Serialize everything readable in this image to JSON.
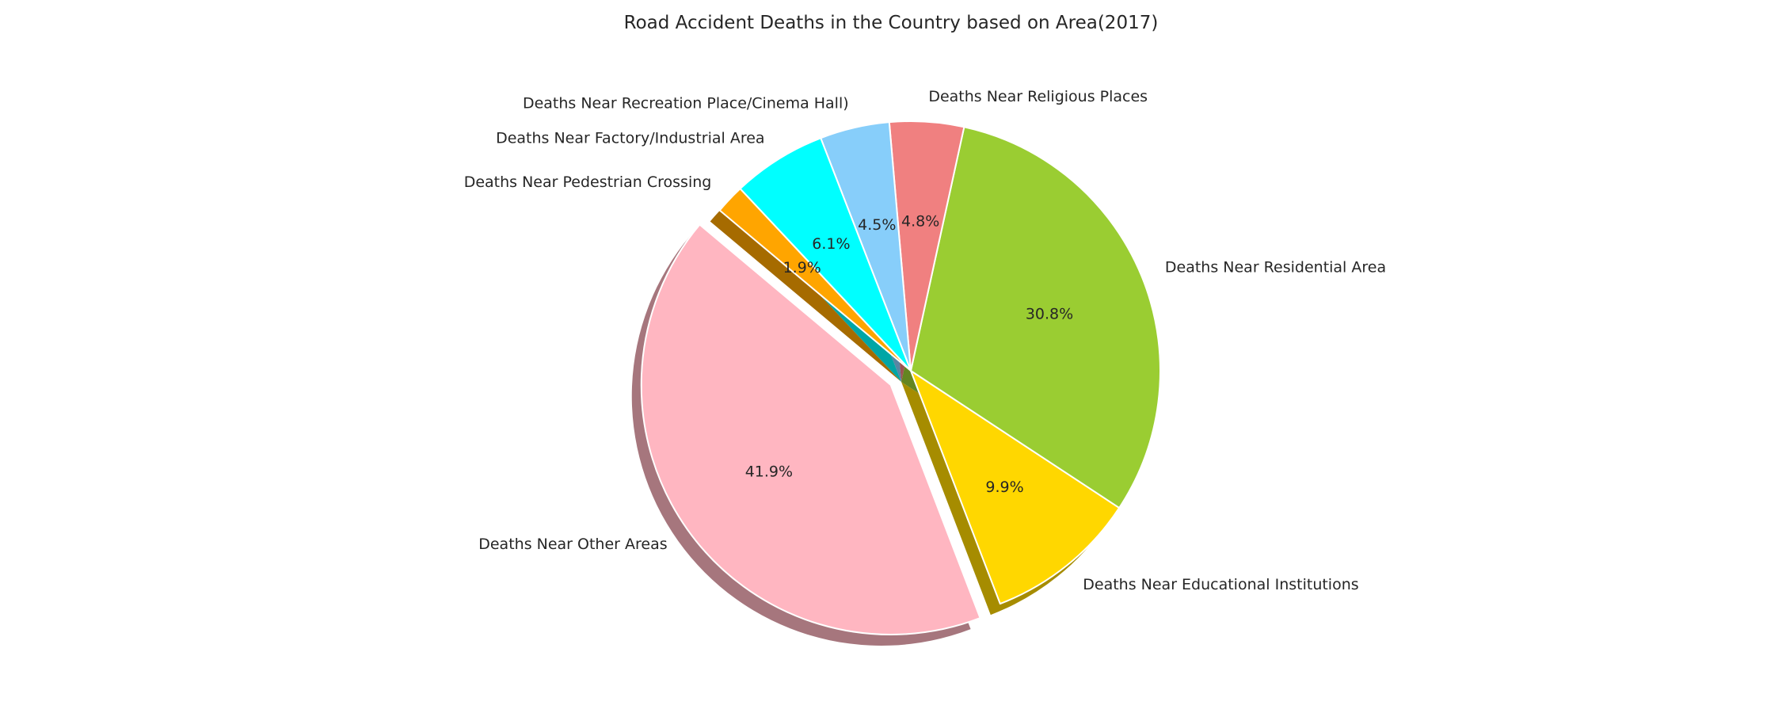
{
  "chart_data": {
    "type": "pie",
    "title": "Road Accident Deaths in the Country based on Area(2017)",
    "start_angle_deg": 140,
    "direction": "counterclockwise",
    "shadow": true,
    "slices": [
      {
        "label": "Deaths Near Other Areas",
        "percent": 41.9,
        "label_text": "41.9%",
        "color": "#FFB6C1",
        "exploded": true
      },
      {
        "label": "Deaths Near Educational Institutions",
        "percent": 9.9,
        "label_text": "9.9%",
        "color": "#FFD700",
        "exploded": false
      },
      {
        "label": "Deaths Near Residential Area",
        "percent": 30.8,
        "label_text": "30.8%",
        "color": "#9ACD32",
        "exploded": false
      },
      {
        "label": "Deaths Near Religious Places",
        "percent": 4.8,
        "label_text": "4.8%",
        "color": "#F08080",
        "exploded": false
      },
      {
        "label": "Deaths Near Recreation Place/Cinema Hall)",
        "percent": 4.5,
        "label_text": "4.5%",
        "color": "#87CEFA",
        "exploded": false
      },
      {
        "label": "Deaths Near Factory/Industrial Area",
        "percent": 6.1,
        "label_text": "6.1%",
        "color": "#00FFFF",
        "exploded": false
      },
      {
        "label": "Deaths Near Pedestrian Crossing",
        "percent": 1.9,
        "label_text": "1.9%",
        "color": "#FFA500",
        "exploded": false
      }
    ]
  }
}
